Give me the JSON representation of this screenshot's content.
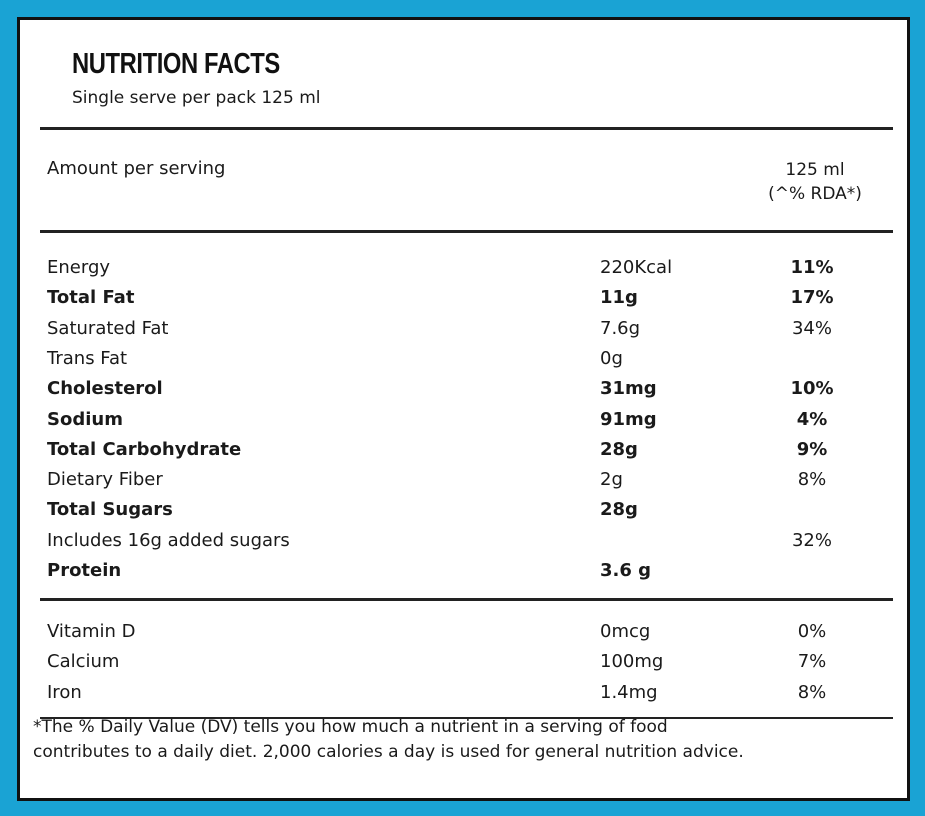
{
  "header": {
    "title": "NUTRITION FACTS",
    "subtitle": "Single serve per pack  125 ml"
  },
  "serving": {
    "label": "Amount per serving",
    "amount": "125 ml",
    "rda": "(^% RDA*)"
  },
  "nutrients": [
    {
      "name": "Energy",
      "amount": "220Kcal",
      "pct": "11%",
      "bold": false,
      "pct_bold": true
    },
    {
      "name": "Total Fat",
      "amount": "11g",
      "pct": "17%",
      "bold": true
    },
    {
      "name": "Saturated Fat",
      "amount": "7.6g",
      "pct": "34%",
      "bold": false
    },
    {
      "name": "Trans Fat",
      "amount": "0g",
      "pct": "",
      "bold": false
    },
    {
      "name": "Cholesterol",
      "amount": "31mg",
      "pct": "10%",
      "bold": true
    },
    {
      "name": "Sodium",
      "amount": "91mg",
      "pct": "4%",
      "bold": true
    },
    {
      "name": "Total Carbohydrate",
      "amount": "28g",
      "pct": "9%",
      "bold": true
    },
    {
      "name": "Dietary Fiber",
      "amount": "2g",
      "pct": "8%",
      "bold": false
    },
    {
      "name": "Total Sugars",
      "amount": "28g",
      "pct": "",
      "bold": true
    },
    {
      "name": "Includes 16g added sugars",
      "amount": "",
      "pct": "32%",
      "bold": false
    },
    {
      "name": "Protein",
      "amount": "3.6 g",
      "pct": "",
      "bold": true
    }
  ],
  "vitamins": [
    {
      "name": "Vitamin D",
      "amount": "0mcg",
      "pct": "0%"
    },
    {
      "name": "Calcium",
      "amount": "100mg",
      "pct": "7%"
    },
    {
      "name": "Iron",
      "amount": "1.4mg",
      "pct": "8%"
    }
  ],
  "footnote": {
    "line1": "*The % Daily Value (DV) tells you how much a nutrient in a serving of food",
    "line2": "contributes to a daily diet. 2,000 calories a day is used for general nutrition advice."
  },
  "colors": {
    "frame": "#1aa3d4",
    "panel": "#ffffff",
    "text": "#1a1a1a"
  }
}
